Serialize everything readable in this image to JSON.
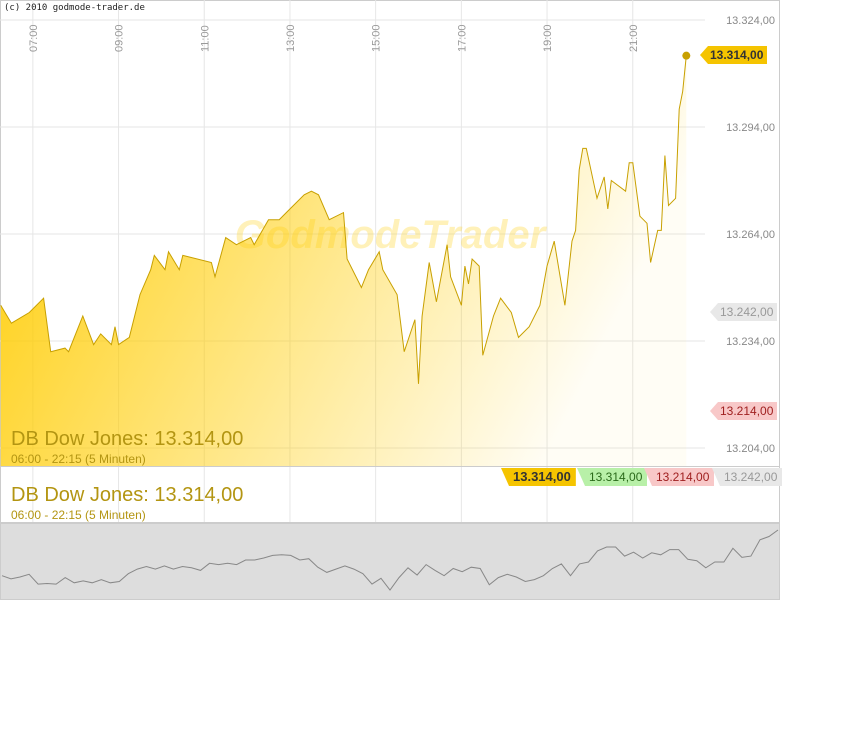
{
  "copyright": "(c) 2010 godmode-trader.de",
  "watermark": "GodmodeTrader",
  "title": "DB Dow Jones: 13.314,00",
  "subtitle": "06:00 - 22:15 (5 Minuten)",
  "tags": {
    "last": "13.314,00",
    "high": "13.314,00",
    "low": "13.214,00",
    "open": "13.242,00"
  },
  "colors": {
    "line": "#c8a000",
    "fill": "#ffcc00",
    "last": "#f5c400",
    "high": "#b8f0a8",
    "low": "#f8c8c8",
    "open": "#e8e8e8"
  },
  "chart_data": {
    "type": "area",
    "x_ticks": [
      "07:00",
      "09:00",
      "11:00",
      "13:00",
      "15:00",
      "17:00",
      "19:00",
      "21:00"
    ],
    "y_ticks": [
      "13.324,00",
      "13.294,00",
      "13.264,00",
      "13.234,00",
      "13.204,00"
    ],
    "y_tick_values": [
      13324,
      13294,
      13264,
      13234,
      13204
    ],
    "ylim": [
      13198,
      13330
    ],
    "xlim": [
      "06:00",
      "22:30"
    ],
    "grid": true,
    "x": [
      "06:15",
      "06:30",
      "06:55",
      "07:15",
      "07:25",
      "07:45",
      "07:50",
      "08:10",
      "08:25",
      "08:35",
      "08:50",
      "08:55",
      "09:00",
      "09:15",
      "09:30",
      "09:45",
      "09:50",
      "10:05",
      "10:10",
      "10:25",
      "10:30",
      "11:10",
      "11:15",
      "11:30",
      "11:45",
      "12:05",
      "12:10",
      "12:30",
      "12:45",
      "13:00",
      "13:20",
      "13:30",
      "13:40",
      "13:55",
      "14:15",
      "14:20",
      "14:40",
      "14:50",
      "15:05",
      "15:10",
      "15:30",
      "15:40",
      "15:55",
      "16:00",
      "16:05",
      "16:15",
      "16:25",
      "16:40",
      "16:45",
      "17:00",
      "17:05",
      "17:10",
      "17:15",
      "17:25",
      "17:30",
      "17:45",
      "17:55",
      "18:10",
      "18:20",
      "18:35",
      "18:50",
      "19:00",
      "19:10",
      "19:25",
      "19:35",
      "19:40",
      "19:45",
      "19:50",
      "19:55",
      "20:10",
      "20:20",
      "20:25",
      "20:30",
      "20:50",
      "20:55",
      "21:00",
      "21:10",
      "21:20",
      "21:25",
      "21:35",
      "21:40",
      "21:45",
      "21:50",
      "22:00",
      "22:05",
      "22:10",
      "22:15"
    ],
    "values": [
      13244,
      13239,
      13242,
      13246,
      13231,
      13232,
      13231,
      13241,
      13233,
      13236,
      13233,
      13238,
      13233,
      13235,
      13247,
      13254,
      13258,
      13254,
      13259,
      13254,
      13258,
      13256,
      13252,
      13263,
      13261,
      13263,
      13261,
      13268,
      13268,
      13271,
      13275,
      13276,
      13275,
      13268,
      13270,
      13257,
      13249,
      13254,
      13259,
      13254,
      13247,
      13231,
      13240,
      13222,
      13241,
      13256,
      13245,
      13261,
      13252,
      13244,
      13255,
      13250,
      13257,
      13255,
      13230,
      13241,
      13246,
      13242,
      13235,
      13238,
      13244,
      13255,
      13262,
      13244,
      13262,
      13265,
      13282,
      13288,
      13288,
      13274,
      13280,
      13271,
      13279,
      13276,
      13284,
      13284,
      13269,
      13267,
      13256,
      13265,
      13265,
      13286,
      13272,
      13274,
      13299,
      13304,
      13314
    ]
  }
}
